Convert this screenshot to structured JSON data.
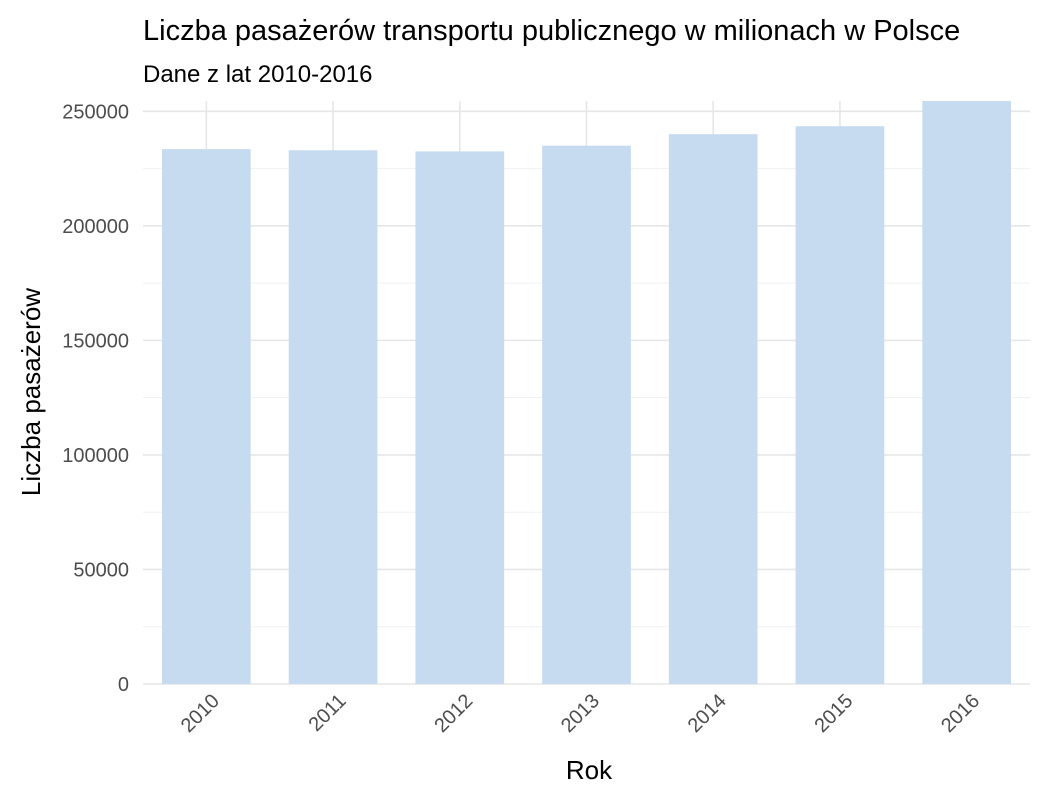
{
  "chart_data": {
    "type": "bar",
    "title": "Liczba pasażerów transportu publicznego w milionach w Polsce",
    "subtitle": "Dane z lat 2010-2016",
    "xlabel": "Rok",
    "ylabel": "Liczba pasażerów",
    "categories": [
      "2010",
      "2011",
      "2012",
      "2013",
      "2014",
      "2015",
      "2016"
    ],
    "values": [
      233500,
      233000,
      232500,
      235000,
      240000,
      243500,
      254500
    ],
    "ylim": [
      0,
      254500
    ],
    "yticks": [
      "0",
      "50000",
      "100000",
      "150000",
      "200000",
      "250000"
    ],
    "grid": true,
    "legend": "none",
    "bar_color": "#c6dbef"
  }
}
